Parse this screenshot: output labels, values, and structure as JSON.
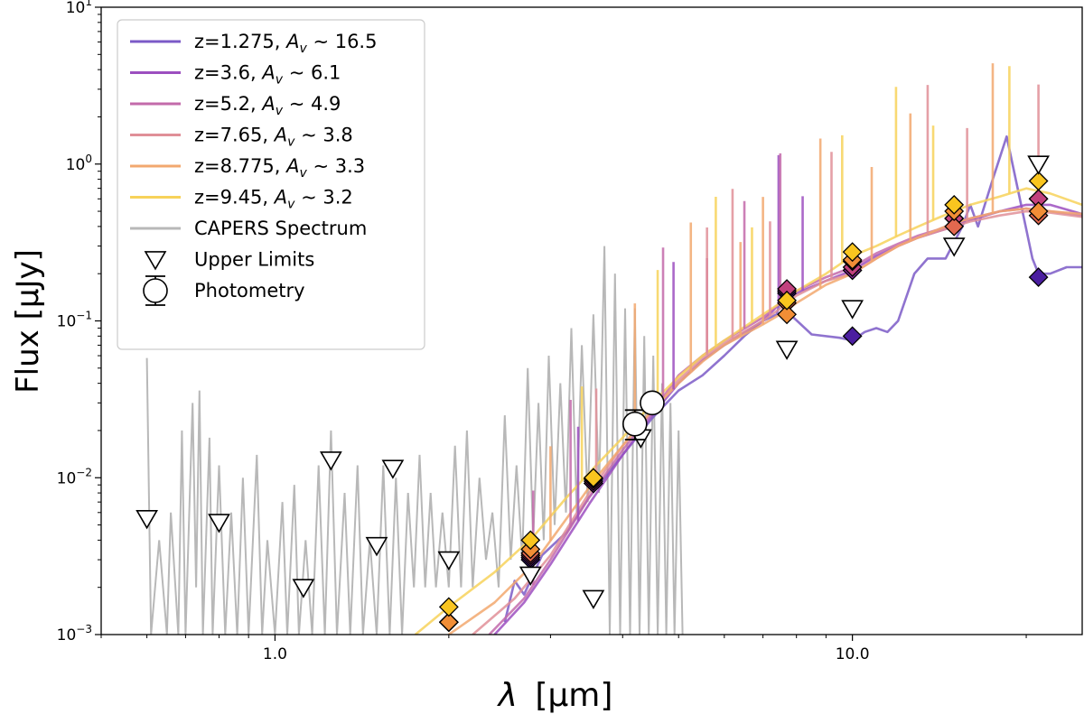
{
  "chart_data": {
    "type": "line",
    "xscale": "log",
    "yscale": "log",
    "xlabel_sym": "λ",
    "xlabel_unit": "[μm]",
    "ylabel": "Flux [μJy]",
    "xlim": [
      0.5,
      25
    ],
    "ylim": [
      0.001,
      10
    ],
    "x_ticks": [
      {
        "value": 1.0,
        "label": "1.0"
      },
      {
        "value": 10.0,
        "label": "10.0"
      }
    ],
    "y_ticks": [
      {
        "value": 0.001,
        "base": "10",
        "exp": "−3"
      },
      {
        "value": 0.01,
        "base": "10",
        "exp": "−2"
      },
      {
        "value": 0.1,
        "base": "10",
        "exp": "−1"
      },
      {
        "value": 1,
        "base": "10",
        "exp": "0"
      },
      {
        "value": 10,
        "base": "10",
        "exp": "1"
      }
    ],
    "legend_position": "upper-left",
    "series": [
      {
        "name": "z=1.275, Av~16.5",
        "z_text": "z=1.275,",
        "av_text": "∼ 16.5",
        "color": "#7b5ac7",
        "points": [
          [
            2.5,
            0.0012
          ],
          [
            2.6,
            0.0022
          ],
          [
            2.7,
            0.0018
          ],
          [
            2.9,
            0.0032
          ],
          [
            3.2,
            0.0045
          ],
          [
            3.5,
            0.0075
          ],
          [
            4.0,
            0.014
          ],
          [
            4.5,
            0.024
          ],
          [
            5.0,
            0.036
          ],
          [
            5.5,
            0.045
          ],
          [
            6.0,
            0.06
          ],
          [
            6.5,
            0.08
          ],
          [
            7.0,
            0.1
          ],
          [
            7.4,
            0.11
          ],
          [
            7.6,
            0.17
          ],
          [
            7.8,
            0.11
          ],
          [
            8.5,
            0.082
          ],
          [
            9.5,
            0.078
          ],
          [
            10.0,
            0.075
          ],
          [
            10.5,
            0.085
          ],
          [
            11.0,
            0.09
          ],
          [
            11.5,
            0.085
          ],
          [
            12.0,
            0.1
          ],
          [
            12.8,
            0.2
          ],
          [
            13.5,
            0.25
          ],
          [
            14.5,
            0.25
          ],
          [
            15.5,
            0.4
          ],
          [
            16.0,
            0.55
          ],
          [
            16.5,
            0.4
          ],
          [
            17.5,
            0.8
          ],
          [
            18.5,
            1.5
          ],
          [
            19.5,
            0.6
          ],
          [
            20.5,
            0.25
          ],
          [
            21.0,
            0.2
          ],
          [
            22.0,
            0.2
          ],
          [
            23.5,
            0.22
          ],
          [
            25.0,
            0.22
          ]
        ]
      },
      {
        "name": "z=3.6, Av~6.1",
        "z_text": "z=3.6,",
        "av_text": "∼ 6.1",
        "color": "#9c4fbf",
        "points": [
          [
            2.4,
            0.001
          ],
          [
            2.7,
            0.0016
          ],
          [
            3.0,
            0.0028
          ],
          [
            3.5,
            0.0068
          ],
          [
            4.0,
            0.014
          ],
          [
            4.5,
            0.025
          ],
          [
            5.0,
            0.04
          ],
          [
            5.5,
            0.056
          ],
          [
            6.0,
            0.07
          ],
          [
            7.0,
            0.1
          ],
          [
            7.5,
            0.13
          ],
          [
            8.0,
            0.15
          ],
          [
            9.0,
            0.18
          ],
          [
            10.0,
            0.21
          ],
          [
            11.0,
            0.26
          ],
          [
            12.0,
            0.3
          ],
          [
            13.0,
            0.34
          ],
          [
            14.0,
            0.37
          ],
          [
            15.0,
            0.4
          ],
          [
            16.0,
            0.44
          ],
          [
            18.0,
            0.5
          ],
          [
            20.0,
            0.55
          ],
          [
            22.0,
            0.55
          ],
          [
            25.0,
            0.48
          ]
        ]
      },
      {
        "name": "z=5.2, Av~4.9",
        "z_text": "z=5.2,",
        "av_text": "∼ 4.9",
        "color": "#c36aaa",
        "points": [
          [
            2.35,
            0.001
          ],
          [
            2.7,
            0.0017
          ],
          [
            3.0,
            0.003
          ],
          [
            3.5,
            0.0075
          ],
          [
            4.0,
            0.015
          ],
          [
            4.5,
            0.026
          ],
          [
            5.0,
            0.045
          ],
          [
            5.5,
            0.06
          ],
          [
            6.0,
            0.075
          ],
          [
            7.0,
            0.105
          ],
          [
            7.5,
            0.13
          ],
          [
            8.0,
            0.155
          ],
          [
            9.0,
            0.19
          ],
          [
            10.0,
            0.22
          ],
          [
            11.0,
            0.27
          ],
          [
            12.0,
            0.31
          ],
          [
            13.0,
            0.35
          ],
          [
            14.0,
            0.38
          ],
          [
            15.0,
            0.42
          ],
          [
            16.0,
            0.45
          ],
          [
            18.0,
            0.5
          ],
          [
            20.0,
            0.52
          ],
          [
            22.0,
            0.5
          ],
          [
            25.0,
            0.47
          ]
        ]
      },
      {
        "name": "z=7.65, Av~3.8",
        "z_text": "z=7.65,",
        "av_text": "∼ 3.8",
        "color": "#e08f98",
        "points": [
          [
            2.2,
            0.001
          ],
          [
            2.6,
            0.0017
          ],
          [
            3.0,
            0.0032
          ],
          [
            3.5,
            0.008
          ],
          [
            4.0,
            0.016
          ],
          [
            4.5,
            0.027
          ],
          [
            5.0,
            0.042
          ],
          [
            5.5,
            0.058
          ],
          [
            6.0,
            0.072
          ],
          [
            7.0,
            0.1
          ],
          [
            7.5,
            0.12
          ],
          [
            8.0,
            0.145
          ],
          [
            9.0,
            0.18
          ],
          [
            10.0,
            0.2
          ],
          [
            11.0,
            0.25
          ],
          [
            12.0,
            0.3
          ],
          [
            13.0,
            0.34
          ],
          [
            14.0,
            0.37
          ],
          [
            15.0,
            0.4
          ],
          [
            16.0,
            0.43
          ],
          [
            18.0,
            0.47
          ],
          [
            20.0,
            0.5
          ],
          [
            22.0,
            0.49
          ],
          [
            25.0,
            0.46
          ]
        ]
      },
      {
        "name": "z=8.775, Av~3.3",
        "z_text": "z=8.775,",
        "av_text": "∼ 3.3",
        "color": "#f2a86f",
        "points": [
          [
            2.0,
            0.001
          ],
          [
            2.4,
            0.0016
          ],
          [
            2.8,
            0.0028
          ],
          [
            3.2,
            0.0055
          ],
          [
            3.6,
            0.01
          ],
          [
            4.0,
            0.016
          ],
          [
            4.5,
            0.027
          ],
          [
            5.0,
            0.04
          ],
          [
            5.5,
            0.055
          ],
          [
            6.0,
            0.07
          ],
          [
            7.0,
            0.095
          ],
          [
            7.5,
            0.11
          ],
          [
            8.0,
            0.13
          ],
          [
            9.0,
            0.17
          ],
          [
            10.0,
            0.2
          ],
          [
            11.0,
            0.25
          ],
          [
            12.0,
            0.3
          ],
          [
            13.0,
            0.34
          ],
          [
            14.0,
            0.38
          ],
          [
            15.0,
            0.42
          ],
          [
            16.0,
            0.45
          ],
          [
            18.0,
            0.5
          ],
          [
            20.0,
            0.52
          ],
          [
            22.0,
            0.5
          ],
          [
            25.0,
            0.48
          ]
        ]
      },
      {
        "name": "z=9.45, Av~3.2",
        "z_text": "z=9.45,",
        "av_text": "∼ 3.2",
        "color": "#f7d25a",
        "points": [
          [
            1.75,
            0.001
          ],
          [
            2.0,
            0.0015
          ],
          [
            2.4,
            0.0025
          ],
          [
            2.8,
            0.0042
          ],
          [
            3.2,
            0.0075
          ],
          [
            3.6,
            0.012
          ],
          [
            4.0,
            0.018
          ],
          [
            4.5,
            0.03
          ],
          [
            5.0,
            0.044
          ],
          [
            5.5,
            0.06
          ],
          [
            6.0,
            0.075
          ],
          [
            7.0,
            0.11
          ],
          [
            7.5,
            0.13
          ],
          [
            8.0,
            0.155
          ],
          [
            9.0,
            0.2
          ],
          [
            10.0,
            0.26
          ],
          [
            11.0,
            0.3
          ],
          [
            12.0,
            0.35
          ],
          [
            13.0,
            0.4
          ],
          [
            14.0,
            0.45
          ],
          [
            15.0,
            0.5
          ],
          [
            16.0,
            0.55
          ],
          [
            18.0,
            0.62
          ],
          [
            20.0,
            0.7
          ],
          [
            22.0,
            0.65
          ],
          [
            25.0,
            0.55
          ]
        ]
      }
    ],
    "emission_lines": [
      {
        "series": 1,
        "x": [
          3.35,
          4.9,
          7.45,
          8.2
        ]
      },
      {
        "series": 2,
        "x": [
          2.8,
          3.25,
          4.7,
          5.6,
          6.5,
          7.5
        ]
      },
      {
        "series": 3,
        "x": [
          3.6,
          5.6,
          6.2,
          7.2,
          9.2,
          13.5,
          15.8,
          21.0
        ]
      },
      {
        "series": 4,
        "x": [
          3.0,
          4.2,
          5.25,
          6.4,
          7.0,
          8.8,
          10.8,
          12.6,
          17.5
        ]
      },
      {
        "series": 5,
        "x": [
          3.4,
          4.6,
          5.8,
          6.7,
          9.6,
          11.9,
          13.8,
          18.7
        ]
      }
    ],
    "spectrum": {
      "name": "CAPERS Spectrum",
      "color": "#b8b8b8",
      "points": [
        [
          0.6,
          0.058
        ],
        [
          0.61,
          0.001
        ],
        [
          0.63,
          0.004
        ],
        [
          0.65,
          0.001
        ],
        [
          0.66,
          0.006
        ],
        [
          0.68,
          0.001
        ],
        [
          0.69,
          0.02
        ],
        [
          0.7,
          0.001
        ],
        [
          0.72,
          0.03
        ],
        [
          0.73,
          0.002
        ],
        [
          0.74,
          0.036
        ],
        [
          0.75,
          0.001
        ],
        [
          0.77,
          0.018
        ],
        [
          0.78,
          0.001
        ],
        [
          0.8,
          0.012
        ],
        [
          0.82,
          0.001
        ],
        [
          0.84,
          0.006
        ],
        [
          0.86,
          0.001
        ],
        [
          0.88,
          0.01
        ],
        [
          0.9,
          0.001
        ],
        [
          0.93,
          0.014
        ],
        [
          0.95,
          0.001
        ],
        [
          0.97,
          0.004
        ],
        [
          1.0,
          0.001
        ],
        [
          1.03,
          0.007
        ],
        [
          1.05,
          0.001
        ],
        [
          1.08,
          0.009
        ],
        [
          1.1,
          0.001
        ],
        [
          1.13,
          0.004
        ],
        [
          1.16,
          0.001
        ],
        [
          1.19,
          0.012
        ],
        [
          1.22,
          0.001
        ],
        [
          1.25,
          0.02
        ],
        [
          1.28,
          0.001
        ],
        [
          1.32,
          0.008
        ],
        [
          1.35,
          0.001
        ],
        [
          1.39,
          0.012
        ],
        [
          1.42,
          0.001
        ],
        [
          1.46,
          0.004
        ],
        [
          1.5,
          0.001
        ],
        [
          1.54,
          0.012
        ],
        [
          1.58,
          0.001
        ],
        [
          1.62,
          0.01
        ],
        [
          1.66,
          0.001
        ],
        [
          1.7,
          0.008
        ],
        [
          1.74,
          0.002
        ],
        [
          1.78,
          0.014
        ],
        [
          1.82,
          0.002
        ],
        [
          1.86,
          0.008
        ],
        [
          1.9,
          0.002
        ],
        [
          1.95,
          0.006
        ],
        [
          2.0,
          0.002
        ],
        [
          2.05,
          0.016
        ],
        [
          2.1,
          0.002
        ],
        [
          2.15,
          0.02
        ],
        [
          2.2,
          0.002
        ],
        [
          2.26,
          0.01
        ],
        [
          2.32,
          0.003
        ],
        [
          2.38,
          0.006
        ],
        [
          2.44,
          0.002
        ],
        [
          2.5,
          0.025
        ],
        [
          2.56,
          0.003
        ],
        [
          2.62,
          0.012
        ],
        [
          2.68,
          0.003
        ],
        [
          2.74,
          0.05
        ],
        [
          2.8,
          0.004
        ],
        [
          2.86,
          0.03
        ],
        [
          2.92,
          0.004
        ],
        [
          2.98,
          0.06
        ],
        [
          3.05,
          0.005
        ],
        [
          3.12,
          0.04
        ],
        [
          3.19,
          0.006
        ],
        [
          3.26,
          0.09
        ],
        [
          3.33,
          0.006
        ],
        [
          3.4,
          0.07
        ],
        [
          3.48,
          0.007
        ],
        [
          3.56,
          0.11
        ],
        [
          3.64,
          0.008
        ],
        [
          3.72,
          0.3
        ],
        [
          3.8,
          0.001
        ],
        [
          3.88,
          0.2
        ],
        [
          3.96,
          0.001
        ],
        [
          4.04,
          0.12
        ],
        [
          4.12,
          0.001
        ],
        [
          4.2,
          0.12
        ],
        [
          4.28,
          0.001
        ],
        [
          4.36,
          0.08
        ],
        [
          4.44,
          0.001
        ],
        [
          4.52,
          0.06
        ],
        [
          4.6,
          0.001
        ],
        [
          4.68,
          0.04
        ],
        [
          4.76,
          0.001
        ],
        [
          4.84,
          0.03
        ],
        [
          4.92,
          0.001
        ],
        [
          5.0,
          0.02
        ],
        [
          5.08,
          0.001
        ]
      ]
    },
    "detections": [
      {
        "x": 4.2,
        "y": 0.022,
        "err_lo": 0.0175,
        "err_hi": 0.027
      },
      {
        "x": 4.5,
        "y": 0.03,
        "err_lo": 0.027,
        "err_hi": 0.033
      }
    ],
    "upper_limits": [
      {
        "x": 0.6,
        "y": 0.0055
      },
      {
        "x": 0.8,
        "y": 0.0052
      },
      {
        "x": 1.12,
        "y": 0.002
      },
      {
        "x": 1.25,
        "y": 0.013
      },
      {
        "x": 1.5,
        "y": 0.0037
      },
      {
        "x": 1.6,
        "y": 0.0115
      },
      {
        "x": 2.0,
        "y": 0.003
      },
      {
        "x": 2.77,
        "y": 0.0024
      },
      {
        "x": 3.56,
        "y": 0.0017
      },
      {
        "x": 4.3,
        "y": 0.018
      },
      {
        "x": 7.7,
        "y": 0.066
      },
      {
        "x": 10.0,
        "y": 0.12
      },
      {
        "x": 15.0,
        "y": 0.3
      },
      {
        "x": 21.0,
        "y": 1.0
      }
    ],
    "model_photometry": [
      {
        "x": 2.0,
        "values": [
          0.0012,
          0.0012,
          0.0012,
          0.0012,
          0.0012,
          0.0015
        ]
      },
      {
        "x": 2.77,
        "values": [
          0.003,
          0.0031,
          0.0032,
          0.0033,
          0.0035,
          0.004
        ]
      },
      {
        "x": 3.56,
        "values": [
          0.0092,
          0.0092,
          0.0095,
          0.0098,
          0.0098,
          0.01
        ]
      },
      {
        "x": 7.7,
        "values": [
          0.15,
          0.155,
          0.16,
          0.13,
          0.11,
          0.135
        ]
      },
      {
        "x": 10.0,
        "values": [
          0.08,
          0.21,
          0.22,
          0.24,
          0.245,
          0.275
        ]
      },
      {
        "x": 15.0,
        "values": [
          0.45,
          0.45,
          0.45,
          0.4,
          0.5,
          0.55
        ]
      },
      {
        "x": 21.0,
        "values": [
          0.19,
          0.6,
          0.6,
          0.47,
          0.5,
          0.78
        ]
      }
    ],
    "diamond_colors": [
      "#4b1ea0",
      "#8a2a9c",
      "#c2417e",
      "#e2684f",
      "#f18e36",
      "#f9c51f"
    ],
    "legend": {
      "av_symbol": "A",
      "av_sub": "v",
      "upper_limits_label": "Upper Limits",
      "photometry_label": "Photometry"
    }
  }
}
